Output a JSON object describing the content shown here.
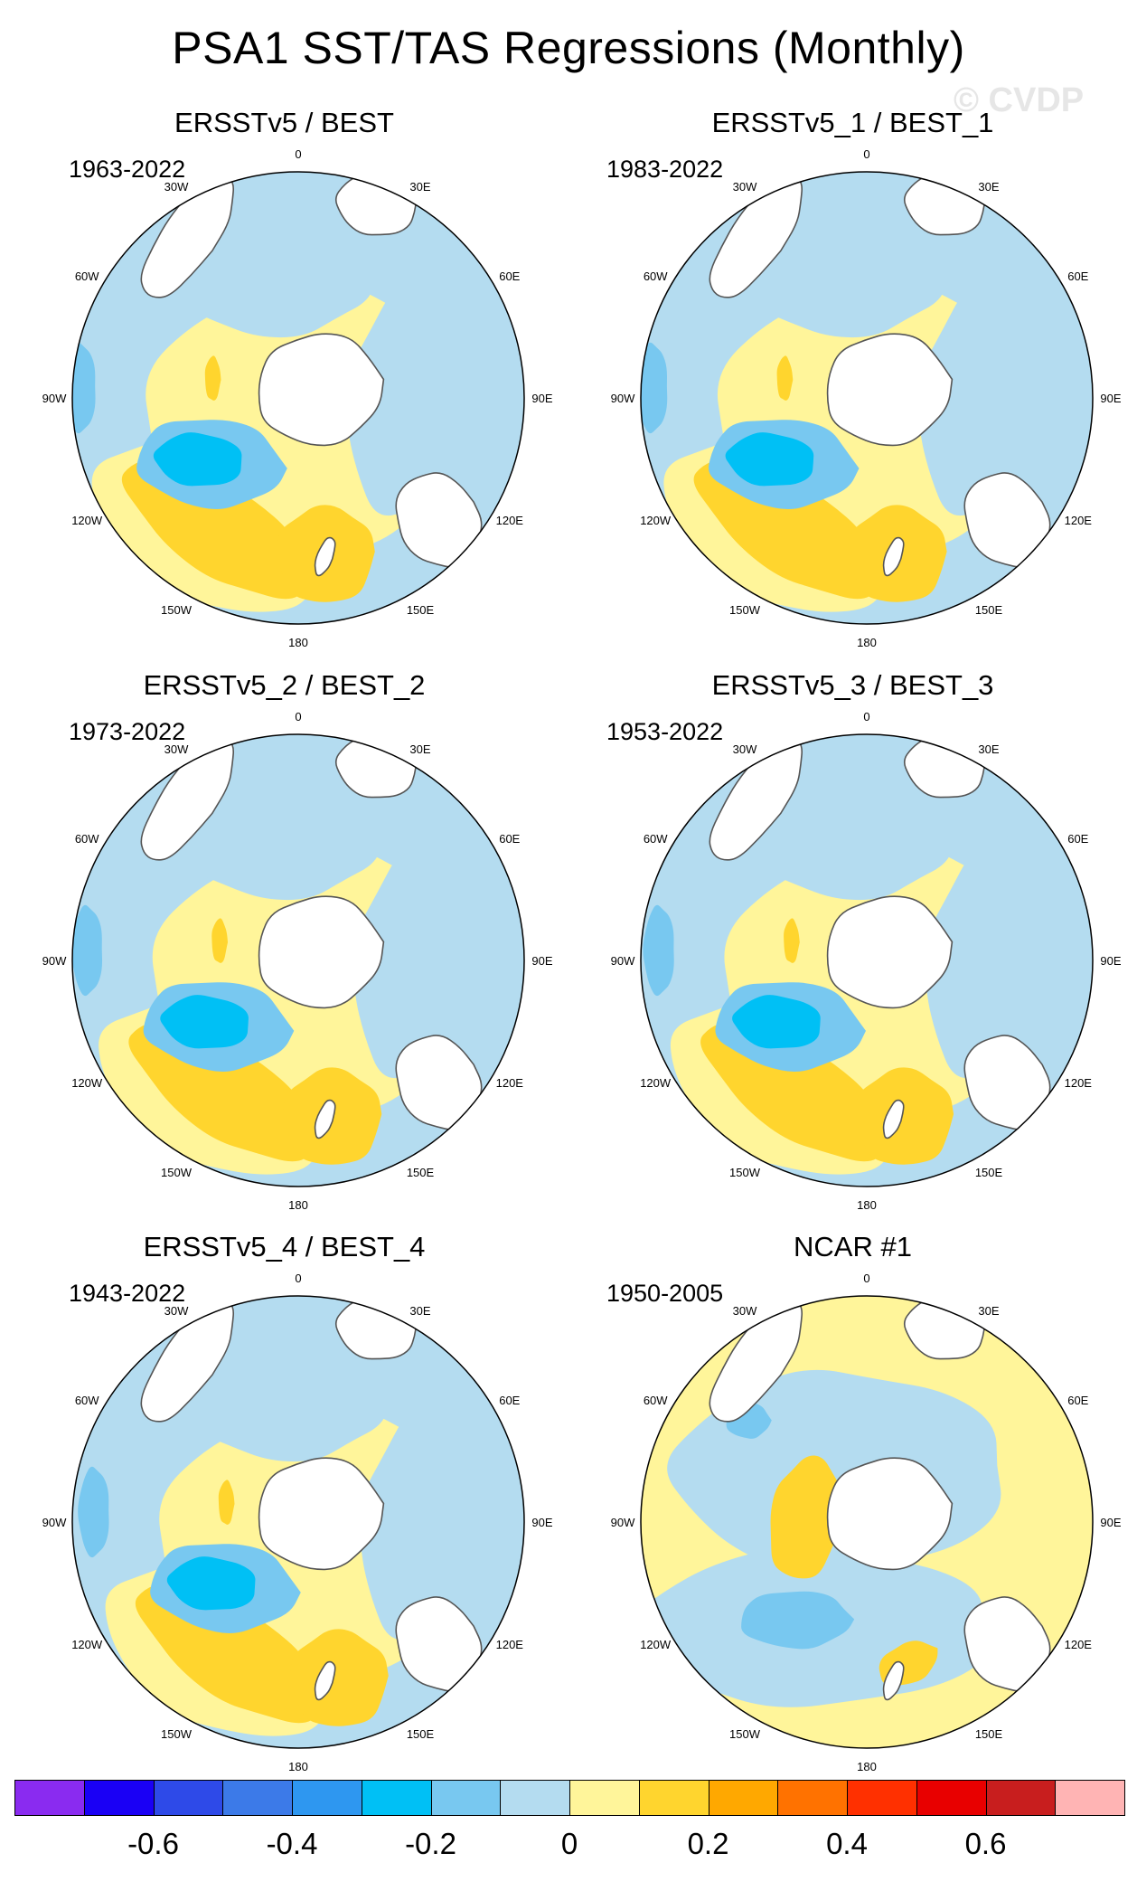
{
  "title": "PSA1 SST/TAS Regressions (Monthly)",
  "watermark": "© CVDP",
  "panels": [
    {
      "title": "ERSSTv5 / BEST",
      "years": "1963-2022"
    },
    {
      "title": "ERSSTv5_1 / BEST_1",
      "years": "1983-2022"
    },
    {
      "title": "ERSSTv5_2 / BEST_2",
      "years": "1973-2022"
    },
    {
      "title": "ERSSTv5_3 / BEST_3",
      "years": "1953-2022"
    },
    {
      "title": "ERSSTv5_4 / BEST_4",
      "years": "1943-2022"
    },
    {
      "title": "NCAR #1",
      "years": "1950-2005"
    }
  ],
  "lon_labels": [
    "0",
    "30E",
    "60E",
    "90E",
    "120E",
    "150E",
    "180",
    "150W",
    "120W",
    "90W",
    "60W",
    "30W"
  ],
  "chart_data": {
    "type": "heatmap",
    "projection": "south polar stereographic",
    "variable": "SST/TAS regression on PSA1",
    "colorbar": {
      "levels": [
        -0.7,
        -0.6,
        -0.5,
        -0.4,
        -0.3,
        -0.2,
        -0.1,
        0,
        0.1,
        0.2,
        0.3,
        0.4,
        0.5,
        0.6,
        0.7
      ],
      "colors": [
        "#8a2bf0",
        "#1a00f5",
        "#2e4ae8",
        "#3c7ae8",
        "#2e97f0",
        "#00c0f5",
        "#78c8f0",
        "#b4dcf0",
        "#fff59a",
        "#ffd52e",
        "#ffa800",
        "#ff7200",
        "#ff3000",
        "#e80000",
        "#c81e1e",
        "#ffb4b4"
      ],
      "tick_labels": [
        "-0.6",
        "-0.4",
        "-0.2",
        "0",
        "0.2",
        "0.4",
        "0.6"
      ],
      "tick_values": [
        -0.6,
        -0.4,
        -0.2,
        0,
        0.2,
        0.4,
        0.6
      ]
    }
  }
}
